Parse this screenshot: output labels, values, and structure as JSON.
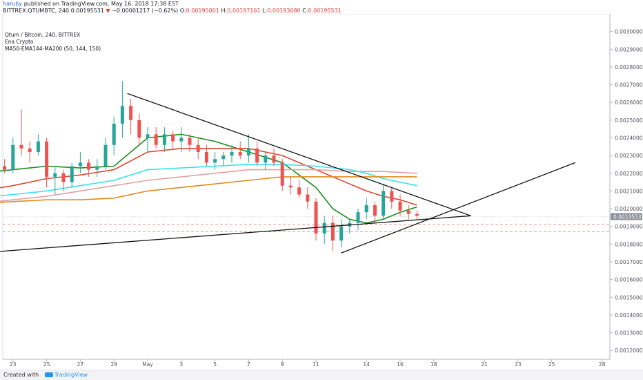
{
  "header": {
    "author": "haruby",
    "published_text": " published on TradingView.com, May 16, 2018 17:38 EST",
    "symbol": "BITTREX:QTUMBTC, 240",
    "last_price": "0.00195531",
    "change_arrow": "▼",
    "change": "−0.00001217 (−0.62%)",
    "o_label": "O:",
    "o_value": "0.00195001",
    "h_label": "H:",
    "h_value": "0.00197161",
    "l_label": "L:",
    "l_value": "0.00193680",
    "c_label": "C:",
    "c_value": "0.00195531"
  },
  "legend": {
    "line1": "Qtum / Bitcoin, 240, BITTREX",
    "line2": "Ena Crypto",
    "line3": "MA50-EMA144-MA200 (50, 144, 150)"
  },
  "footer": {
    "created_with": "Created with",
    "brand": "TradingView"
  },
  "colors": {
    "up": "#26a69a",
    "down": "#ef5350",
    "ma50": "#1b8a1b",
    "ema144": "#e0a2a2",
    "ma200": "#e08a1a",
    "cyan": "#35e3ea",
    "red_ma": "#e0452f",
    "level_line": "#e57373",
    "trend_line": "#111111"
  },
  "chart_data": {
    "type": "candlestick",
    "title": "Qtum / Bitcoin, 240, BITTREX",
    "ylim": [
      0.00115,
      0.0031
    ],
    "y_ticks": [
      "0.00300000",
      "0.00290000",
      "0.00280000",
      "0.00270000",
      "0.00260000",
      "0.00250000",
      "0.00240000",
      "0.00230000",
      "0.00220000",
      "0.00210000",
      "0.00200000",
      "0.00190000",
      "0.00180000",
      "0.00170000",
      "0.00160000",
      "0.00150000",
      "0.00140000",
      "0.00130000",
      "0.00120000"
    ],
    "y_tick_values": [
      0.003,
      0.0029,
      0.0028,
      0.0027,
      0.0026,
      0.0025,
      0.0024,
      0.0023,
      0.0022,
      0.0021,
      0.002,
      0.0019,
      0.0018,
      0.0017,
      0.0016,
      0.0015,
      0.0014,
      0.0013,
      0.0012
    ],
    "x_ticks": [
      "23",
      "25",
      "27",
      "29",
      "May",
      "3",
      "5",
      "7",
      "9",
      "11",
      "14",
      "16",
      "18",
      "21",
      "23",
      "25",
      "28"
    ],
    "x_tick_days": [
      -8,
      -6,
      -4,
      -2,
      0,
      2,
      4,
      6,
      8,
      10,
      13,
      15,
      17,
      20,
      22,
      24,
      27
    ],
    "current_price_label": "0.00195531",
    "current_price": 0.00195531,
    "horizontal_levels": [
      0.00191,
      0.00187
    ],
    "candles": [
      {
        "d": -9.5,
        "o": 0.0022,
        "h": 0.00224,
        "l": 0.00217,
        "c": 0.00221
      },
      {
        "d": -9.0,
        "o": 0.00221,
        "h": 0.00226,
        "l": 0.00218,
        "c": 0.00224
      },
      {
        "d": -8.5,
        "o": 0.00224,
        "h": 0.00228,
        "l": 0.0022,
        "c": 0.00222
      },
      {
        "d": -8.0,
        "o": 0.00222,
        "h": 0.0024,
        "l": 0.0022,
        "c": 0.00236
      },
      {
        "d": -7.5,
        "o": 0.00236,
        "h": 0.00256,
        "l": 0.0023,
        "c": 0.00234
      },
      {
        "d": -7.0,
        "o": 0.00234,
        "h": 0.00238,
        "l": 0.00226,
        "c": 0.00232
      },
      {
        "d": -6.5,
        "o": 0.00232,
        "h": 0.00242,
        "l": 0.0023,
        "c": 0.00238
      },
      {
        "d": -6.0,
        "o": 0.00238,
        "h": 0.0024,
        "l": 0.00212,
        "c": 0.00218
      },
      {
        "d": -5.5,
        "o": 0.00218,
        "h": 0.00224,
        "l": 0.00208,
        "c": 0.0022
      },
      {
        "d": -5.0,
        "o": 0.0022,
        "h": 0.00222,
        "l": 0.0021,
        "c": 0.00215
      },
      {
        "d": -4.5,
        "o": 0.00215,
        "h": 0.00226,
        "l": 0.00212,
        "c": 0.00224
      },
      {
        "d": -4.0,
        "o": 0.00224,
        "h": 0.00232,
        "l": 0.0022,
        "c": 0.00226
      },
      {
        "d": -3.5,
        "o": 0.00226,
        "h": 0.00228,
        "l": 0.00218,
        "c": 0.00222
      },
      {
        "d": -3.0,
        "o": 0.00222,
        "h": 0.00228,
        "l": 0.00218,
        "c": 0.00224
      },
      {
        "d": -2.5,
        "o": 0.00224,
        "h": 0.0024,
        "l": 0.00222,
        "c": 0.00236
      },
      {
        "d": -2.0,
        "o": 0.00236,
        "h": 0.00252,
        "l": 0.0023,
        "c": 0.00248
      },
      {
        "d": -1.5,
        "o": 0.00248,
        "h": 0.00272,
        "l": 0.0024,
        "c": 0.00258
      },
      {
        "d": -1.0,
        "o": 0.00258,
        "h": 0.00262,
        "l": 0.00242,
        "c": 0.0025
      },
      {
        "d": -0.5,
        "o": 0.0025,
        "h": 0.00254,
        "l": 0.00236,
        "c": 0.0024
      },
      {
        "d": 0.0,
        "o": 0.0024,
        "h": 0.00246,
        "l": 0.00232,
        "c": 0.00242
      },
      {
        "d": 0.5,
        "o": 0.00242,
        "h": 0.00246,
        "l": 0.00234,
        "c": 0.00236
      },
      {
        "d": 1.0,
        "o": 0.00236,
        "h": 0.00246,
        "l": 0.00232,
        "c": 0.00242
      },
      {
        "d": 1.5,
        "o": 0.00242,
        "h": 0.00244,
        "l": 0.00234,
        "c": 0.00238
      },
      {
        "d": 2.0,
        "o": 0.00238,
        "h": 0.00246,
        "l": 0.00232,
        "c": 0.0024
      },
      {
        "d": 2.5,
        "o": 0.0024,
        "h": 0.00242,
        "l": 0.00232,
        "c": 0.00236
      },
      {
        "d": 3.0,
        "o": 0.00236,
        "h": 0.0024,
        "l": 0.00228,
        "c": 0.00232
      },
      {
        "d": 3.5,
        "o": 0.00232,
        "h": 0.00236,
        "l": 0.00224,
        "c": 0.00226
      },
      {
        "d": 4.0,
        "o": 0.00226,
        "h": 0.00232,
        "l": 0.00222,
        "c": 0.00228
      },
      {
        "d": 4.5,
        "o": 0.00228,
        "h": 0.00232,
        "l": 0.00224,
        "c": 0.0023
      },
      {
        "d": 5.0,
        "o": 0.0023,
        "h": 0.00236,
        "l": 0.00226,
        "c": 0.00232
      },
      {
        "d": 5.5,
        "o": 0.00232,
        "h": 0.00238,
        "l": 0.00228,
        "c": 0.0023
      },
      {
        "d": 6.0,
        "o": 0.0023,
        "h": 0.00242,
        "l": 0.00226,
        "c": 0.00234
      },
      {
        "d": 6.5,
        "o": 0.00234,
        "h": 0.00238,
        "l": 0.00224,
        "c": 0.00226
      },
      {
        "d": 7.0,
        "o": 0.00226,
        "h": 0.00232,
        "l": 0.00222,
        "c": 0.0023
      },
      {
        "d": 7.5,
        "o": 0.0023,
        "h": 0.00234,
        "l": 0.00224,
        "c": 0.00226
      },
      {
        "d": 8.0,
        "o": 0.00226,
        "h": 0.00228,
        "l": 0.0021,
        "c": 0.00213
      },
      {
        "d": 8.5,
        "o": 0.00213,
        "h": 0.00218,
        "l": 0.00208,
        "c": 0.00212
      },
      {
        "d": 9.0,
        "o": 0.00212,
        "h": 0.00216,
        "l": 0.00206,
        "c": 0.00208
      },
      {
        "d": 9.5,
        "o": 0.00208,
        "h": 0.00212,
        "l": 0.002,
        "c": 0.00204
      },
      {
        "d": 10.0,
        "o": 0.00204,
        "h": 0.00206,
        "l": 0.00182,
        "c": 0.00186
      },
      {
        "d": 10.5,
        "o": 0.00186,
        "h": 0.00196,
        "l": 0.0018,
        "c": 0.00192
      },
      {
        "d": 11.0,
        "o": 0.00192,
        "h": 0.00196,
        "l": 0.00176,
        "c": 0.00182
      },
      {
        "d": 11.5,
        "o": 0.00182,
        "h": 0.00194,
        "l": 0.00178,
        "c": 0.0019
      },
      {
        "d": 12.0,
        "o": 0.0019,
        "h": 0.00194,
        "l": 0.00186,
        "c": 0.00192
      },
      {
        "d": 12.5,
        "o": 0.00192,
        "h": 0.002,
        "l": 0.00188,
        "c": 0.00198
      },
      {
        "d": 13.0,
        "o": 0.00198,
        "h": 0.00206,
        "l": 0.00194,
        "c": 0.00202
      },
      {
        "d": 13.5,
        "o": 0.00202,
        "h": 0.00204,
        "l": 0.00192,
        "c": 0.00196
      },
      {
        "d": 14.0,
        "o": 0.00196,
        "h": 0.00214,
        "l": 0.00194,
        "c": 0.0021
      },
      {
        "d": 14.5,
        "o": 0.0021,
        "h": 0.00212,
        "l": 0.002,
        "c": 0.00204
      },
      {
        "d": 15.0,
        "o": 0.00204,
        "h": 0.00208,
        "l": 0.00196,
        "c": 0.00199
      },
      {
        "d": 15.5,
        "o": 0.00199,
        "h": 0.00202,
        "l": 0.00194,
        "c": 0.00197
      },
      {
        "d": 16.0,
        "o": 0.00197,
        "h": 0.00199,
        "l": 0.00194,
        "c": 0.00196
      }
    ],
    "series": [
      {
        "name": "MA50",
        "color": "#1b8a1b",
        "x": [
          -10,
          -8,
          -6,
          -4,
          -2,
          0,
          2,
          4,
          6,
          8,
          10,
          11,
          12,
          13,
          14,
          15,
          16
        ],
        "y": [
          0.0022,
          0.00222,
          0.00224,
          0.00223,
          0.00224,
          0.0024,
          0.00242,
          0.00238,
          0.00232,
          0.00226,
          0.00212,
          0.002,
          0.00194,
          0.00192,
          0.00194,
          0.00198,
          0.00201
        ]
      },
      {
        "name": "Red MA",
        "color": "#e0452f",
        "x": [
          -10,
          -8,
          -6,
          -4,
          -2,
          0,
          2,
          4,
          6,
          8,
          10,
          12,
          13,
          14,
          15,
          16
        ],
        "y": [
          0.0021,
          0.00213,
          0.00217,
          0.00219,
          0.00222,
          0.00232,
          0.00234,
          0.00234,
          0.00234,
          0.0023,
          0.00222,
          0.00214,
          0.0021,
          0.00207,
          0.00205,
          0.00202
        ]
      },
      {
        "name": "Cyan MA",
        "color": "#35e3ea",
        "x": [
          -10,
          -8,
          -6,
          -4,
          -2,
          0,
          2,
          4,
          6,
          8,
          10,
          12,
          13,
          14,
          15,
          16
        ],
        "y": [
          0.00206,
          0.00208,
          0.0021,
          0.00213,
          0.00216,
          0.00222,
          0.00223,
          0.00224,
          0.00225,
          0.00225,
          0.00224,
          0.00222,
          0.0022,
          0.00217,
          0.00215,
          0.00213
        ]
      },
      {
        "name": "EMA144",
        "color": "#e0a2a2",
        "x": [
          -10,
          -8,
          -6,
          -4,
          -2,
          0,
          2,
          4,
          6,
          8,
          10,
          12,
          14,
          16
        ],
        "y": [
          0.00203,
          0.00205,
          0.00207,
          0.0021,
          0.00213,
          0.00216,
          0.00218,
          0.0022,
          0.00222,
          0.00222,
          0.00222,
          0.00221,
          0.00221,
          0.0022
        ]
      },
      {
        "name": "MA200",
        "color": "#e08a1a",
        "x": [
          -10,
          -8,
          -6,
          -4,
          -2,
          0,
          2,
          4,
          6,
          8,
          10,
          12,
          14,
          16
        ],
        "y": [
          0.00203,
          0.00204,
          0.00205,
          0.00205,
          0.00206,
          0.0021,
          0.00212,
          0.00214,
          0.00216,
          0.00218,
          0.00218,
          0.00218,
          0.00218,
          0.00218
        ]
      }
    ],
    "trend_lines": [
      {
        "x1": -1.2,
        "y1": 0.00265,
        "x2": 19.2,
        "y2": 0.00196
      },
      {
        "x1": -10,
        "y1": 0.00175,
        "x2": 19.2,
        "y2": 0.00196
      },
      {
        "x1": 11.5,
        "y1": 0.00175,
        "x2": 25.4,
        "y2": 0.00226
      }
    ]
  }
}
